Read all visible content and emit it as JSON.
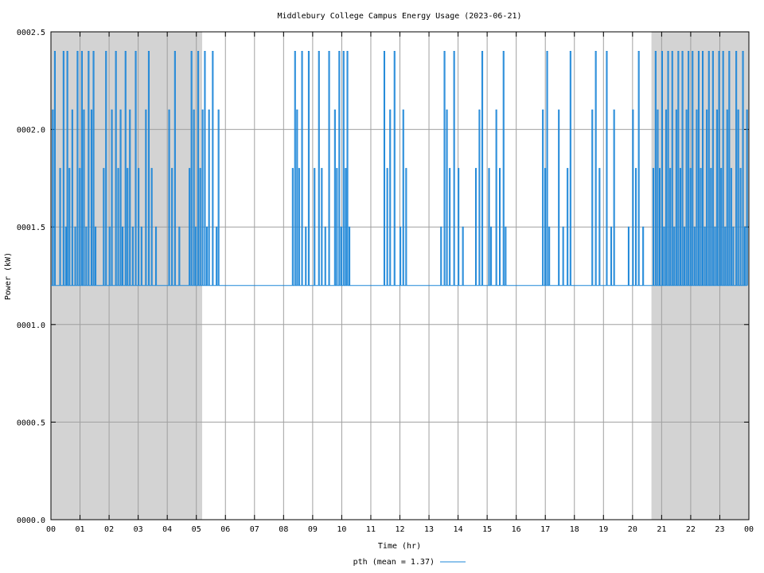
{
  "chart_data": {
    "type": "line",
    "title": "Middlebury College Campus Energy Usage (2023-06-21)",
    "xlabel": "Time (hr)",
    "ylabel": "Power (kW)",
    "xlim": [
      0,
      24
    ],
    "ylim": [
      0,
      2.5
    ],
    "grid": true,
    "legend_position": "bottom-center",
    "x_ticks": [
      0,
      1,
      2,
      3,
      4,
      5,
      6,
      7,
      8,
      9,
      10,
      11,
      12,
      13,
      14,
      15,
      16,
      17,
      18,
      19,
      20,
      21,
      22,
      23,
      24
    ],
    "x_tick_labels": [
      "00",
      "01",
      "02",
      "03",
      "04",
      "05",
      "06",
      "07",
      "08",
      "09",
      "10",
      "11",
      "12",
      "13",
      "14",
      "15",
      "16",
      "17",
      "18",
      "19",
      "20",
      "21",
      "22",
      "23",
      "00"
    ],
    "y_ticks": [
      0,
      0.5,
      1.0,
      1.5,
      2.0,
      2.5
    ],
    "y_tick_labels": [
      "0000.0",
      "0000.5",
      "0001.0",
      "0001.5",
      "0002.0",
      "0002.5"
    ],
    "night_shading": [
      {
        "from": 0,
        "to": 5.2,
        "color": "#d3d3d3"
      },
      {
        "from": 20.65,
        "to": 24,
        "color": "#d3d3d3"
      }
    ],
    "series": [
      {
        "name": "pth",
        "legend_label": "pth (mean = 1.37)",
        "color": "#1e87d8",
        "baseline": 1.2,
        "mean": 1.37,
        "spikes": [
          [
            0.05,
            2.1
          ],
          [
            0.12,
            2.4
          ],
          [
            0.3,
            1.8
          ],
          [
            0.42,
            2.4
          ],
          [
            0.5,
            1.5
          ],
          [
            0.55,
            2.4
          ],
          [
            0.62,
            1.8
          ],
          [
            0.72,
            2.1
          ],
          [
            0.82,
            1.5
          ],
          [
            0.9,
            2.4
          ],
          [
            0.98,
            1.8
          ],
          [
            1.05,
            2.4
          ],
          [
            1.12,
            2.1
          ],
          [
            1.2,
            1.5
          ],
          [
            1.28,
            2.4
          ],
          [
            1.38,
            2.1
          ],
          [
            1.45,
            2.4
          ],
          [
            1.52,
            1.5
          ],
          [
            1.8,
            1.8
          ],
          [
            1.88,
            2.4
          ],
          [
            2.0,
            1.5
          ],
          [
            2.08,
            2.1
          ],
          [
            2.22,
            2.4
          ],
          [
            2.3,
            1.8
          ],
          [
            2.38,
            2.1
          ],
          [
            2.45,
            1.5
          ],
          [
            2.55,
            2.4
          ],
          [
            2.62,
            1.8
          ],
          [
            2.7,
            2.1
          ],
          [
            2.8,
            1.5
          ],
          [
            2.9,
            2.4
          ],
          [
            3.0,
            1.8
          ],
          [
            3.1,
            1.5
          ],
          [
            3.25,
            2.1
          ],
          [
            3.35,
            2.4
          ],
          [
            3.45,
            1.8
          ],
          [
            3.6,
            1.5
          ],
          [
            4.05,
            2.1
          ],
          [
            4.15,
            1.8
          ],
          [
            4.25,
            2.4
          ],
          [
            4.4,
            1.5
          ],
          [
            4.75,
            1.8
          ],
          [
            4.82,
            2.4
          ],
          [
            4.9,
            2.1
          ],
          [
            4.97,
            1.5
          ],
          [
            5.05,
            2.4
          ],
          [
            5.12,
            1.8
          ],
          [
            5.2,
            2.1
          ],
          [
            5.28,
            2.4
          ],
          [
            5.35,
            1.5
          ],
          [
            5.42,
            2.1
          ],
          [
            5.55,
            2.4
          ],
          [
            5.68,
            1.5
          ],
          [
            5.75,
            2.1
          ],
          [
            8.3,
            1.8
          ],
          [
            8.38,
            2.4
          ],
          [
            8.45,
            2.1
          ],
          [
            8.52,
            1.8
          ],
          [
            8.62,
            2.4
          ],
          [
            8.75,
            1.5
          ],
          [
            8.85,
            2.4
          ],
          [
            9.05,
            1.8
          ],
          [
            9.2,
            2.4
          ],
          [
            9.3,
            1.8
          ],
          [
            9.42,
            1.5
          ],
          [
            9.55,
            2.4
          ],
          [
            9.75,
            2.1
          ],
          [
            9.82,
            1.8
          ],
          [
            9.9,
            2.4
          ],
          [
            9.97,
            1.5
          ],
          [
            10.05,
            2.4
          ],
          [
            10.12,
            1.8
          ],
          [
            10.18,
            2.4
          ],
          [
            10.25,
            1.5
          ],
          [
            11.45,
            2.4
          ],
          [
            11.55,
            1.8
          ],
          [
            11.65,
            2.1
          ],
          [
            11.8,
            2.4
          ],
          [
            12.0,
            1.5
          ],
          [
            12.1,
            2.1
          ],
          [
            12.2,
            1.8
          ],
          [
            13.4,
            1.5
          ],
          [
            13.52,
            2.4
          ],
          [
            13.6,
            2.1
          ],
          [
            13.7,
            1.8
          ],
          [
            13.85,
            2.4
          ],
          [
            14.0,
            1.8
          ],
          [
            14.15,
            1.5
          ],
          [
            14.6,
            1.8
          ],
          [
            14.72,
            2.1
          ],
          [
            14.82,
            2.4
          ],
          [
            15.05,
            1.8
          ],
          [
            15.12,
            1.5
          ],
          [
            15.3,
            2.1
          ],
          [
            15.42,
            1.8
          ],
          [
            15.55,
            2.4
          ],
          [
            15.62,
            1.5
          ],
          [
            16.9,
            2.1
          ],
          [
            16.98,
            1.8
          ],
          [
            17.05,
            2.4
          ],
          [
            17.12,
            1.5
          ],
          [
            17.45,
            2.1
          ],
          [
            17.6,
            1.5
          ],
          [
            17.75,
            1.8
          ],
          [
            17.85,
            2.4
          ],
          [
            18.6,
            2.1
          ],
          [
            18.72,
            2.4
          ],
          [
            18.85,
            1.8
          ],
          [
            19.1,
            2.4
          ],
          [
            19.25,
            1.5
          ],
          [
            19.35,
            2.1
          ],
          [
            19.85,
            1.5
          ],
          [
            20.0,
            2.1
          ],
          [
            20.1,
            1.8
          ],
          [
            20.2,
            2.4
          ],
          [
            20.35,
            1.5
          ],
          [
            20.7,
            1.8
          ],
          [
            20.78,
            2.4
          ],
          [
            20.85,
            2.1
          ],
          [
            20.92,
            1.8
          ],
          [
            21.0,
            2.4
          ],
          [
            21.07,
            1.5
          ],
          [
            21.14,
            2.1
          ],
          [
            21.21,
            2.4
          ],
          [
            21.28,
            1.8
          ],
          [
            21.35,
            2.4
          ],
          [
            21.42,
            1.5
          ],
          [
            21.49,
            2.1
          ],
          [
            21.56,
            2.4
          ],
          [
            21.63,
            1.8
          ],
          [
            21.7,
            2.4
          ],
          [
            21.77,
            1.5
          ],
          [
            21.84,
            2.1
          ],
          [
            21.91,
            2.4
          ],
          [
            21.98,
            1.8
          ],
          [
            22.05,
            2.4
          ],
          [
            22.12,
            1.5
          ],
          [
            22.19,
            2.1
          ],
          [
            22.26,
            2.4
          ],
          [
            22.33,
            1.8
          ],
          [
            22.4,
            2.4
          ],
          [
            22.47,
            1.5
          ],
          [
            22.54,
            2.1
          ],
          [
            22.61,
            2.4
          ],
          [
            22.68,
            1.8
          ],
          [
            22.75,
            2.4
          ],
          [
            22.82,
            1.5
          ],
          [
            22.89,
            2.1
          ],
          [
            22.96,
            2.4
          ],
          [
            23.03,
            1.8
          ],
          [
            23.1,
            2.4
          ],
          [
            23.17,
            1.5
          ],
          [
            23.24,
            2.1
          ],
          [
            23.31,
            2.4
          ],
          [
            23.38,
            1.8
          ],
          [
            23.45,
            1.5
          ],
          [
            23.55,
            2.4
          ],
          [
            23.62,
            2.1
          ],
          [
            23.7,
            1.8
          ],
          [
            23.78,
            2.4
          ],
          [
            23.85,
            1.5
          ],
          [
            23.92,
            2.1
          ]
        ]
      }
    ]
  }
}
